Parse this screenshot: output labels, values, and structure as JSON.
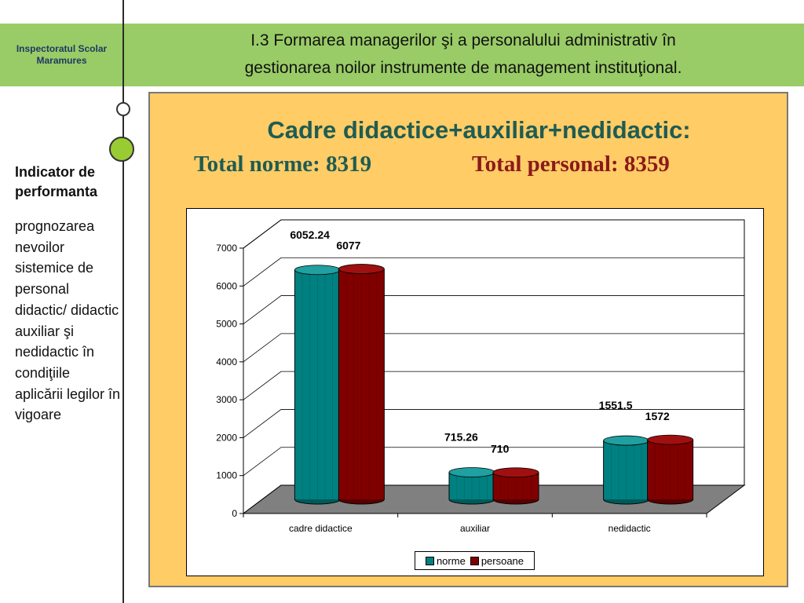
{
  "header": {
    "org_line1": "Inspectoratul Scolar",
    "org_line2": "Maramures",
    "title_line1": "I.3 Formarea managerilor şi a personalului administrativ în",
    "title_line2": "gestionarea noilor instrumente de management instituţional."
  },
  "sidebar": {
    "heading": "Indicator de performanta",
    "text": "prognozarea nevoilor sistemice de personal didactic/ didactic auxiliar şi nedidactic în condiţiile aplicării legilor în vigoare"
  },
  "panel": {
    "title": "Cadre didactice+auxiliar+nedidactic:",
    "total_norme": "Total norme:  8319",
    "total_personal": "Total personal: 8359"
  },
  "colors": {
    "norme": "#008080",
    "persoane": "#800000",
    "panel": "#ffcc66",
    "header": "#99cc66"
  },
  "chart_data": {
    "type": "bar",
    "categories": [
      "cadre didactice",
      "auxiliar",
      "nedidactic"
    ],
    "series": [
      {
        "name": "norme",
        "values": [
          6052.24,
          715.26,
          1551.5
        ],
        "labels": [
          "6052.24",
          "715.26",
          "1551.5"
        ]
      },
      {
        "name": "persoane",
        "values": [
          6077,
          710,
          1572
        ],
        "labels": [
          "6077",
          "710",
          "1572"
        ]
      }
    ],
    "yticks": [
      "0",
      "1000",
      "2000",
      "3000",
      "4000",
      "5000",
      "6000",
      "7000"
    ],
    "ylim": [
      0,
      7000
    ],
    "grid": true,
    "legend": "bottom",
    "style": "3d-cylinder"
  }
}
